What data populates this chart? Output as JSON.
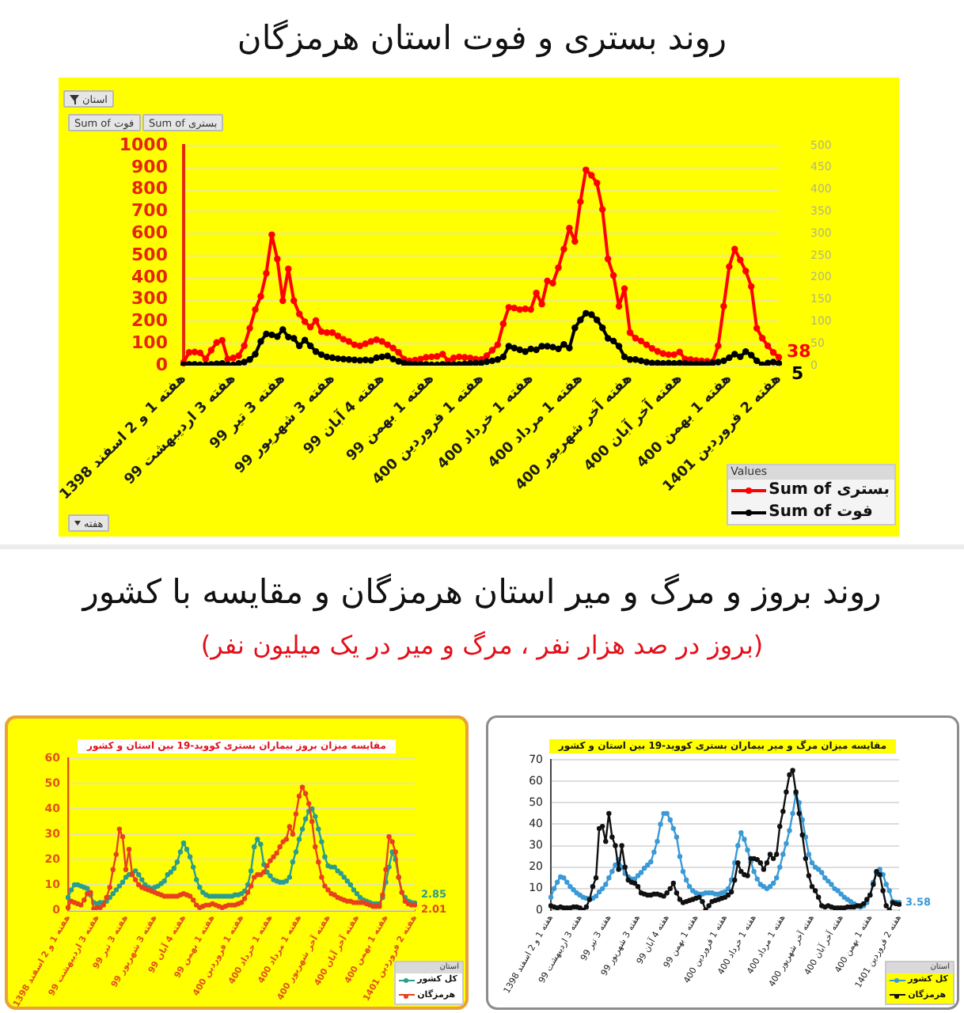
{
  "chart_data": [
    {
      "type": "line",
      "title": "روند بستری و فوت استان هرمزگان",
      "categories": [
        "هفته 1 و 2 اسفند 1398",
        null,
        null,
        null,
        null,
        null,
        null,
        null,
        null,
        "هفته 3 اردیبهشت 99",
        null,
        null,
        null,
        null,
        null,
        null,
        null,
        null,
        "هفته 3 تیر 99",
        null,
        null,
        null,
        null,
        null,
        null,
        null,
        null,
        "هفته 3 شهریور 99",
        null,
        null,
        null,
        null,
        null,
        null,
        null,
        null,
        "هفته 4 آبان 99",
        null,
        null,
        null,
        null,
        null,
        null,
        null,
        null,
        "هفته 1 بهمن 99",
        null,
        null,
        null,
        null,
        null,
        null,
        null,
        null,
        "هفته 1 فروردین 400",
        null,
        null,
        null,
        null,
        null,
        null,
        null,
        null,
        "هفته 1 خرداد 400",
        null,
        null,
        null,
        null,
        null,
        null,
        null,
        null,
        "هفته 1 مرداد 400",
        null,
        null,
        null,
        null,
        null,
        null,
        null,
        null,
        "هفته آخر شهریور 400",
        null,
        null,
        null,
        null,
        null,
        null,
        null,
        null,
        "هفته آخر آبان 400",
        null,
        null,
        null,
        null,
        null,
        null,
        null,
        null,
        "هفته 1 بهمن 400",
        null,
        null,
        null,
        null,
        null,
        null,
        null,
        null,
        "هفته 2 فروردین 1401"
      ],
      "series": [
        {
          "name": "Sum of بستری",
          "color": "#ff0000",
          "values": [
            15,
            60,
            62,
            58,
            30,
            70,
            105,
            115,
            30,
            35,
            45,
            90,
            170,
            255,
            315,
            420,
            595,
            485,
            295,
            440,
            295,
            235,
            200,
            175,
            205,
            155,
            150,
            150,
            135,
            120,
            110,
            95,
            90,
            100,
            110,
            118,
            110,
            95,
            80,
            60,
            30,
            22,
            25,
            30,
            38,
            40,
            42,
            52,
            22,
            35,
            40,
            38,
            35,
            30,
            28,
            45,
            70,
            95,
            190,
            265,
            262,
            255,
            258,
            255,
            330,
            280,
            385,
            375,
            445,
            530,
            625,
            565,
            745,
            890,
            865,
            830,
            710,
            485,
            410,
            270,
            350,
            150,
            125,
            112,
            95,
            78,
            65,
            55,
            50,
            50,
            62,
            30,
            28,
            24,
            22,
            20,
            18,
            90,
            270,
            450,
            530,
            480,
            430,
            360,
            170,
            125,
            90,
            60,
            38
          ],
          "value_labels": [
            null,
            null,
            null,
            null,
            null,
            null,
            null,
            null,
            null,
            null,
            null,
            null,
            null,
            null,
            null,
            null,
            null,
            null,
            null,
            null,
            null,
            null,
            null,
            null,
            null,
            null,
            null,
            null,
            null,
            null,
            null,
            null,
            null,
            null,
            null,
            null,
            null,
            null,
            null,
            null,
            null,
            null,
            null,
            null,
            null,
            null,
            null,
            null,
            null,
            null,
            null,
            null,
            null,
            null,
            null,
            null,
            null,
            null,
            null,
            null,
            null,
            null,
            null,
            null,
            null,
            null,
            null,
            null,
            null,
            null,
            null,
            null,
            null,
            null,
            null,
            null,
            null,
            null,
            null,
            null,
            null,
            null,
            null,
            null,
            null,
            null,
            null,
            null,
            null,
            null,
            null,
            null,
            null,
            null,
            null,
            null,
            null,
            null,
            null,
            null,
            null,
            null,
            null,
            null,
            null,
            null,
            null,
            null,
            "38"
          ]
        },
        {
          "name": "Sum of فوت",
          "color": "#000000",
          "axis": "y2",
          "values": [
            2,
            3,
            3,
            2,
            2,
            3,
            4,
            5,
            2,
            2,
            5,
            8,
            14,
            26,
            55,
            72,
            70,
            66,
            82,
            65,
            62,
            45,
            58,
            45,
            32,
            25,
            20,
            18,
            16,
            15,
            14,
            13,
            12,
            13,
            12,
            18,
            20,
            22,
            15,
            10,
            6,
            4,
            3,
            3,
            3,
            2,
            2,
            3,
            2,
            3,
            3,
            4,
            5,
            6,
            6,
            9,
            11,
            14,
            20,
            44,
            40,
            36,
            32,
            38,
            36,
            44,
            44,
            42,
            38,
            48,
            40,
            86,
            104,
            119,
            116,
            104,
            86,
            62,
            56,
            44,
            20,
            14,
            14,
            11,
            8,
            6,
            6,
            5,
            6,
            5,
            6,
            5,
            4,
            4,
            4,
            4,
            6,
            8,
            11,
            18,
            26,
            20,
            32,
            24,
            11,
            2,
            6,
            8,
            5
          ],
          "value_labels": [
            null,
            null,
            null,
            null,
            null,
            null,
            null,
            null,
            null,
            null,
            null,
            null,
            null,
            null,
            null,
            null,
            null,
            null,
            null,
            null,
            null,
            null,
            null,
            null,
            null,
            null,
            null,
            null,
            null,
            null,
            null,
            null,
            null,
            null,
            null,
            null,
            null,
            null,
            null,
            null,
            null,
            null,
            null,
            null,
            null,
            null,
            null,
            null,
            null,
            null,
            null,
            null,
            null,
            null,
            null,
            null,
            null,
            null,
            null,
            null,
            null,
            null,
            null,
            null,
            null,
            null,
            null,
            null,
            null,
            null,
            null,
            null,
            null,
            null,
            null,
            null,
            null,
            null,
            null,
            null,
            null,
            null,
            null,
            null,
            null,
            null,
            null,
            null,
            null,
            null,
            null,
            null,
            null,
            null,
            null,
            null,
            null,
            null,
            null,
            null,
            null,
            null,
            null,
            null,
            null,
            null,
            null,
            null,
            "5"
          ]
        }
      ],
      "ylim": [
        0,
        1000
      ],
      "yticks": [
        0,
        100,
        200,
        300,
        400,
        500,
        600,
        700,
        800,
        900,
        1000
      ],
      "y2lim": [
        0,
        500
      ],
      "y2ticks": [
        0,
        50,
        100,
        150,
        200,
        250,
        300,
        350,
        400,
        450,
        500
      ],
      "grid": "y",
      "legend": "bottom right",
      "legend_title": "Values",
      "marker": "circle",
      "annotations": [
        "استان",
        "Sum of فوت",
        "Sum of بستری",
        "هفته"
      ]
    },
    {
      "type": "other",
      "title": "روند بروز و مرگ و میر استان هرمزگان و مقایسه با کشور",
      "subtitle": "(بروز در صد هزار نفر ، مرگ و میر در یک میلیون نفر)"
    },
    {
      "type": "line",
      "title": "مقایسه میزان بروز بیماران بستری کووید-19 بین استان و کشور",
      "categories": [
        "هفته 1 و 2 اسفند 1398",
        null,
        null,
        null,
        null,
        null,
        null,
        null,
        null,
        "هفته 3 اردیبهشت 99",
        null,
        null,
        null,
        null,
        null,
        null,
        null,
        null,
        "هفته 3 تیر 99",
        null,
        null,
        null,
        null,
        null,
        null,
        null,
        null,
        "هفته 3 شهریور 99",
        null,
        null,
        null,
        null,
        null,
        null,
        null,
        null,
        "هفته 4 آبان 99",
        null,
        null,
        null,
        null,
        null,
        null,
        null,
        null,
        "هفته 1 بهمن 99",
        null,
        null,
        null,
        null,
        null,
        null,
        null,
        null,
        "هفته 1 فروردین 400",
        null,
        null,
        null,
        null,
        null,
        null,
        null,
        null,
        "هفته 1 خرداد 400",
        null,
        null,
        null,
        null,
        null,
        null,
        null,
        null,
        "هفته 1 مرداد 400",
        null,
        null,
        null,
        null,
        null,
        null,
        null,
        null,
        "هفته آخر شهریور 400",
        null,
        null,
        null,
        null,
        null,
        null,
        null,
        null,
        "هفته آخر آبان 400",
        null,
        null,
        null,
        null,
        null,
        null,
        null,
        null,
        "هفته 1 بهمن 400",
        null,
        null,
        null,
        null,
        null,
        null,
        null,
        null,
        "هفته 2 فروردین 1401"
      ],
      "series": [
        {
          "name": "کل کشور",
          "color": "#2a9d8f",
          "values": [
            5,
            8,
            10,
            10,
            9.5,
            9,
            8.5,
            6,
            3,
            2.5,
            3,
            3,
            3.5,
            5,
            6.5,
            8,
            9.5,
            11,
            13,
            14,
            14.5,
            15.5,
            14,
            12,
            10,
            9,
            8.5,
            9,
            9.5,
            10.5,
            11.5,
            14,
            15,
            16.5,
            19,
            23,
            26.5,
            24,
            21,
            17,
            12,
            9,
            7,
            6,
            5.5,
            5.5,
            5.5,
            5.5,
            5.5,
            5.5,
            5.5,
            5.5,
            6,
            6,
            6.5,
            7.5,
            10,
            15.5,
            25,
            28,
            26,
            18,
            15,
            13.5,
            12,
            11.5,
            11,
            11,
            11.5,
            13,
            19,
            23,
            28,
            32,
            36,
            39,
            40,
            37,
            32,
            27,
            21,
            17.5,
            17,
            17,
            15.5,
            14.5,
            13,
            11.5,
            10,
            8,
            6.5,
            5,
            4,
            3.5,
            3,
            2.5,
            2.5,
            2.5,
            5,
            11,
            17,
            23,
            20,
            13,
            7,
            5,
            3.5,
            3,
            2.85
          ],
          "value_labels": [
            null,
            null,
            null,
            null,
            null,
            null,
            null,
            null,
            null,
            null,
            null,
            null,
            null,
            null,
            null,
            null,
            null,
            null,
            null,
            null,
            null,
            null,
            null,
            null,
            null,
            null,
            null,
            null,
            null,
            null,
            null,
            null,
            null,
            null,
            null,
            null,
            null,
            null,
            null,
            null,
            null,
            null,
            null,
            null,
            null,
            null,
            null,
            null,
            null,
            null,
            null,
            null,
            null,
            null,
            null,
            null,
            null,
            null,
            null,
            null,
            null,
            null,
            null,
            null,
            null,
            null,
            null,
            null,
            null,
            null,
            null,
            null,
            null,
            null,
            null,
            null,
            null,
            null,
            null,
            null,
            null,
            null,
            null,
            null,
            null,
            null,
            null,
            null,
            null,
            null,
            null,
            null,
            null,
            null,
            null,
            null,
            null,
            null,
            null,
            null,
            null,
            null,
            null,
            null,
            null,
            null,
            null,
            null,
            "2.85"
          ]
        },
        {
          "name": "هرمزگان",
          "color": "#e8401c",
          "values": [
            1,
            3.5,
            3,
            2.5,
            2,
            4,
            6.5,
            7,
            0.5,
            1,
            1,
            2,
            5,
            9,
            16,
            22,
            32,
            29,
            16,
            24,
            14,
            12,
            10,
            9,
            8.5,
            8,
            7.5,
            7,
            6.5,
            6,
            5.5,
            5.5,
            5.5,
            5.5,
            5.5,
            6,
            6.5,
            6,
            5.5,
            4,
            2,
            1,
            1.5,
            2,
            2,
            2.5,
            2,
            1.5,
            1,
            1.5,
            2,
            2,
            2,
            2.5,
            3,
            4.5,
            7,
            9.5,
            13,
            14,
            14,
            15,
            17.5,
            19.5,
            21,
            22.5,
            25,
            27,
            28,
            33,
            30,
            38,
            45,
            48.5,
            46,
            42,
            35,
            25,
            19,
            13,
            9.5,
            8,
            6.5,
            6,
            5,
            4.5,
            4,
            3.5,
            3.5,
            3,
            3,
            3,
            3,
            2.5,
            2,
            1.5,
            1.5,
            1.5,
            6,
            16,
            29,
            27,
            23,
            13,
            7,
            3.5,
            2.5,
            2,
            2.01
          ],
          "value_labels": [
            null,
            null,
            null,
            null,
            null,
            null,
            null,
            null,
            null,
            null,
            null,
            null,
            null,
            null,
            null,
            null,
            null,
            null,
            null,
            null,
            null,
            null,
            null,
            null,
            null,
            null,
            null,
            null,
            null,
            null,
            null,
            null,
            null,
            null,
            null,
            null,
            null,
            null,
            null,
            null,
            null,
            null,
            null,
            null,
            null,
            null,
            null,
            null,
            null,
            null,
            null,
            null,
            null,
            null,
            null,
            null,
            null,
            null,
            null,
            null,
            null,
            null,
            null,
            null,
            null,
            null,
            null,
            null,
            null,
            null,
            null,
            null,
            null,
            null,
            null,
            null,
            null,
            null,
            null,
            null,
            null,
            null,
            null,
            null,
            null,
            null,
            null,
            null,
            null,
            null,
            null,
            null,
            null,
            null,
            null,
            null,
            null,
            null,
            null,
            null,
            null,
            null,
            null,
            null,
            null,
            null,
            null,
            null,
            "2.01"
          ]
        }
      ],
      "ylim": [
        0,
        60
      ],
      "yticks": [
        0,
        10,
        20,
        30,
        40,
        50,
        60
      ],
      "grid": "y",
      "legend": "bottom right",
      "legend_title": "استان",
      "marker": "circle"
    },
    {
      "type": "line",
      "title": "مقایسه میزان مرگ و میر بیماران بستری کووید-19 بین استان و کشور",
      "categories": [
        "هفته 1 و 2 اسفند 1398",
        null,
        null,
        null,
        null,
        null,
        null,
        null,
        null,
        "هفته 3 اردیبهشت 99",
        null,
        null,
        null,
        null,
        null,
        null,
        null,
        null,
        "هفته 3 تیر 99",
        null,
        null,
        null,
        null,
        null,
        null,
        null,
        null,
        "هفته 3 شهریور 99",
        null,
        null,
        null,
        null,
        null,
        null,
        null,
        null,
        "هفته 4 آبان 99",
        null,
        null,
        null,
        null,
        null,
        null,
        null,
        null,
        "هفته 1 بهمن 99",
        null,
        null,
        null,
        null,
        null,
        null,
        null,
        null,
        "هفته 1 فروردین 400",
        null,
        null,
        null,
        null,
        null,
        null,
        null,
        null,
        "هفته 1 خرداد 400",
        null,
        null,
        null,
        null,
        null,
        null,
        null,
        null,
        "هفته 1 مرداد 400",
        null,
        null,
        null,
        null,
        null,
        null,
        null,
        null,
        "هفته آخر شهریور 400",
        null,
        null,
        null,
        null,
        null,
        null,
        null,
        null,
        "هفته آخر آبان 400",
        null,
        null,
        null,
        null,
        null,
        null,
        null,
        null,
        "هفته 1 بهمن 400",
        null,
        null,
        null,
        null,
        null,
        null,
        null,
        null,
        "هفته 2 فروردین 1401"
      ],
      "series": [
        {
          "name": "کل کشور",
          "color": "#3b9ad6",
          "values": [
            6,
            10,
            13,
            15.5,
            15,
            13,
            11,
            9.5,
            8,
            7,
            6,
            5.5,
            5,
            5.5,
            6.5,
            8.5,
            10,
            12,
            15,
            18,
            21,
            23.5,
            20,
            17,
            15.5,
            14.5,
            14.5,
            16,
            17.5,
            19.5,
            21,
            22.5,
            27,
            32,
            40,
            45,
            45,
            42,
            38,
            34,
            25,
            18,
            14,
            11,
            9,
            8,
            7.5,
            7.5,
            8,
            8,
            8,
            7.5,
            7.5,
            8,
            8.5,
            10,
            14,
            22,
            30,
            36,
            33,
            28,
            22.5,
            18,
            14.5,
            12,
            11,
            10,
            11,
            12.5,
            15,
            20,
            26,
            31,
            37,
            45,
            54,
            50,
            42,
            34,
            26,
            22,
            20,
            19,
            17.5,
            15,
            13.5,
            12,
            10,
            9,
            7.5,
            6,
            5,
            4,
            3,
            2,
            1.5,
            2,
            3.5,
            7,
            13,
            17,
            19,
            16.5,
            12,
            9,
            4,
            3.7,
            3.58
          ],
          "value_labels": [
            null,
            null,
            null,
            null,
            null,
            null,
            null,
            null,
            null,
            null,
            null,
            null,
            null,
            null,
            null,
            null,
            null,
            null,
            null,
            null,
            null,
            null,
            null,
            null,
            null,
            null,
            null,
            null,
            null,
            null,
            null,
            null,
            null,
            null,
            null,
            null,
            null,
            null,
            null,
            null,
            null,
            null,
            null,
            null,
            null,
            null,
            null,
            null,
            null,
            null,
            null,
            null,
            null,
            null,
            null,
            null,
            null,
            null,
            null,
            null,
            null,
            null,
            null,
            null,
            null,
            null,
            null,
            null,
            null,
            null,
            null,
            null,
            null,
            null,
            null,
            null,
            null,
            null,
            null,
            null,
            null,
            null,
            null,
            null,
            null,
            null,
            null,
            null,
            null,
            null,
            null,
            null,
            null,
            null,
            null,
            null,
            null,
            null,
            null,
            null,
            null,
            null,
            null,
            null,
            null,
            null,
            null,
            null,
            "3.58"
          ]
        },
        {
          "name": "هرمزگان",
          "color": "#111111",
          "values": [
            2,
            1.5,
            1,
            1.5,
            1,
            1,
            1,
            1.5,
            1.5,
            1,
            0,
            1.5,
            5,
            11,
            15,
            38,
            39,
            32,
            45,
            34,
            30,
            19,
            30,
            20,
            14,
            13,
            12.5,
            11,
            8,
            7.5,
            7,
            7,
            7.5,
            7.5,
            7,
            6.5,
            8,
            10,
            12.5,
            8,
            5,
            3.5,
            4,
            4.5,
            5,
            5.5,
            6,
            4,
            0,
            2,
            4,
            4.5,
            5,
            5.5,
            6,
            7,
            8.5,
            14,
            22,
            18,
            16.5,
            16,
            24,
            24,
            23.5,
            22,
            19,
            22,
            26,
            24,
            26,
            39,
            46,
            55,
            63,
            65,
            55,
            45,
            35,
            24,
            16,
            11,
            9,
            6,
            2,
            1.5,
            2,
            1.5,
            1,
            1,
            1,
            1,
            1.5,
            1.5,
            1.5,
            2,
            2,
            3,
            5,
            7,
            12,
            18,
            16.5,
            9,
            2,
            0,
            3.5,
            3,
            2.7
          ]
        }
      ],
      "ylim": [
        0,
        70
      ],
      "yticks": [
        0,
        10,
        20,
        30,
        40,
        50,
        60,
        70
      ],
      "grid": "y",
      "legend": "bottom right",
      "legend_title": "استان",
      "marker": "circle"
    }
  ]
}
